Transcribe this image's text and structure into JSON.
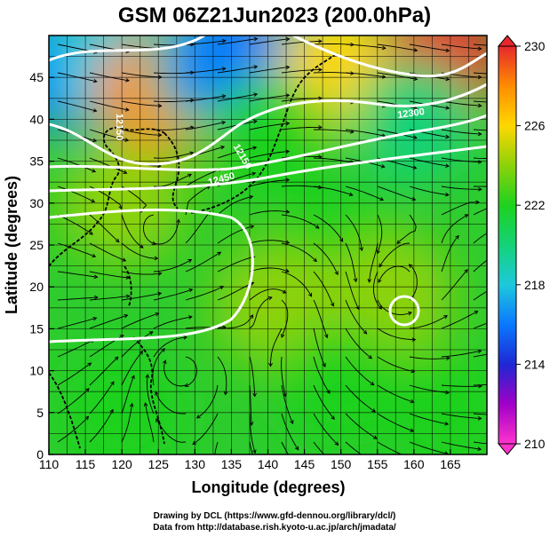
{
  "chart_data": {
    "type": "heatmap",
    "title": "GSM 06Z21Jun2023 (200.0hPa)",
    "xlabel": "Longitude (degrees)",
    "ylabel": "Latitude  (degrees)",
    "xlim": [
      110,
      170
    ],
    "ylim": [
      0,
      50
    ],
    "x_ticks": [
      110,
      115,
      120,
      125,
      130,
      135,
      140,
      145,
      150,
      155,
      160,
      165
    ],
    "y_ticks": [
      0,
      5,
      10,
      15,
      20,
      25,
      30,
      35,
      40,
      45
    ],
    "grid": true,
    "colorbar": {
      "min": 210,
      "max": 230,
      "ticks": [
        210,
        214,
        218,
        222,
        226,
        230
      ],
      "colors": [
        "#ff33cc",
        "#a000c8",
        "#1e28d2",
        "#0a78ff",
        "#1ec8dc",
        "#14d278",
        "#1ed21e",
        "#8cd20a",
        "#ffd700",
        "#ff8c00",
        "#e6282d"
      ]
    },
    "contour_labels": [
      "12150",
      "12150",
      "12300",
      "12450"
    ],
    "field_samples": [
      {
        "lon": 112,
        "lat": 46,
        "value": 215
      },
      {
        "lon": 118,
        "lat": 47,
        "value": 218
      },
      {
        "lon": 125,
        "lat": 43,
        "value": 227
      },
      {
        "lon": 132,
        "lat": 46,
        "value": 219
      },
      {
        "lon": 135,
        "lat": 47,
        "value": 215
      },
      {
        "lon": 150,
        "lat": 46,
        "value": 226
      },
      {
        "lon": 164,
        "lat": 47,
        "value": 230
      },
      {
        "lon": 140,
        "lat": 38,
        "value": 221
      },
      {
        "lon": 160,
        "lat": 40,
        "value": 220
      },
      {
        "lon": 120,
        "lat": 30,
        "value": 223
      },
      {
        "lon": 150,
        "lat": 25,
        "value": 221
      },
      {
        "lon": 141,
        "lat": 18,
        "value": 224
      },
      {
        "lon": 157,
        "lat": 19,
        "value": 223
      },
      {
        "lon": 120,
        "lat": 5,
        "value": 221
      },
      {
        "lon": 150,
        "lat": 8,
        "value": 222
      },
      {
        "lon": 165,
        "lat": 5,
        "value": 221
      }
    ]
  },
  "credits": {
    "line1": "Drawing by DCL (https://www.gfd-dennou.org/library/dcl/)",
    "line2": "Data from http://database.rish.kyoto-u.ac.jp/arch/jmadata/"
  }
}
